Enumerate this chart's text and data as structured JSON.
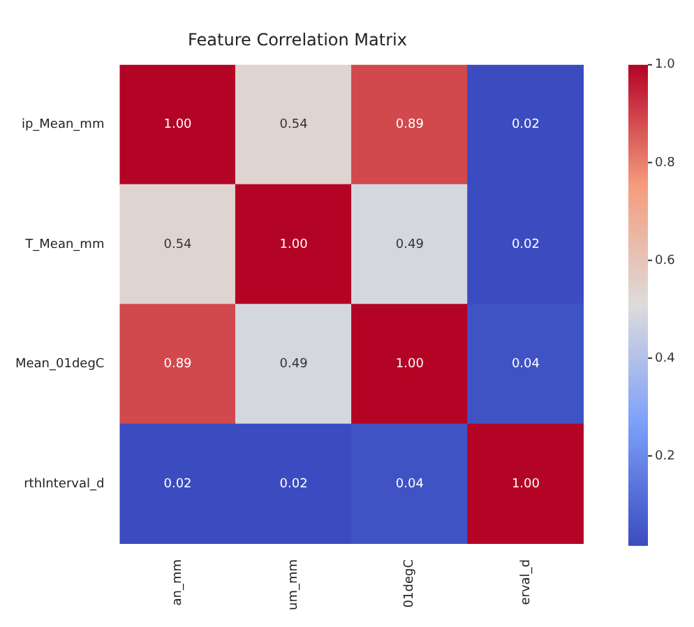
{
  "chart_data": {
    "type": "heatmap",
    "title": "Feature Correlation Matrix",
    "categories": [
      "an_mm",
      "um_mm",
      "01degC",
      "erval_d"
    ],
    "y_categories": [
      "ip_Mean_mm",
      "T_Mean_mm",
      "Mean_01degC",
      "rthInterval_d"
    ],
    "cells": [
      [
        1.0,
        0.54,
        0.89,
        0.02
      ],
      [
        0.54,
        1.0,
        0.49,
        0.02
      ],
      [
        0.89,
        0.49,
        1.0,
        0.04
      ],
      [
        0.02,
        0.02,
        0.04,
        1.0
      ]
    ],
    "cell_labels": [
      [
        "1.00",
        "0.54",
        "0.89",
        "0.02"
      ],
      [
        "0.54",
        "1.00",
        "0.49",
        "0.02"
      ],
      [
        "0.89",
        "0.49",
        "1.00",
        "0.04"
      ],
      [
        "0.02",
        "0.02",
        "0.04",
        "1.00"
      ]
    ],
    "clim": [
      0.02,
      1.0
    ],
    "cticks": [
      0.2,
      0.4,
      0.6,
      0.8,
      {
        "value": 1,
        "label": "1.0"
      }
    ]
  }
}
